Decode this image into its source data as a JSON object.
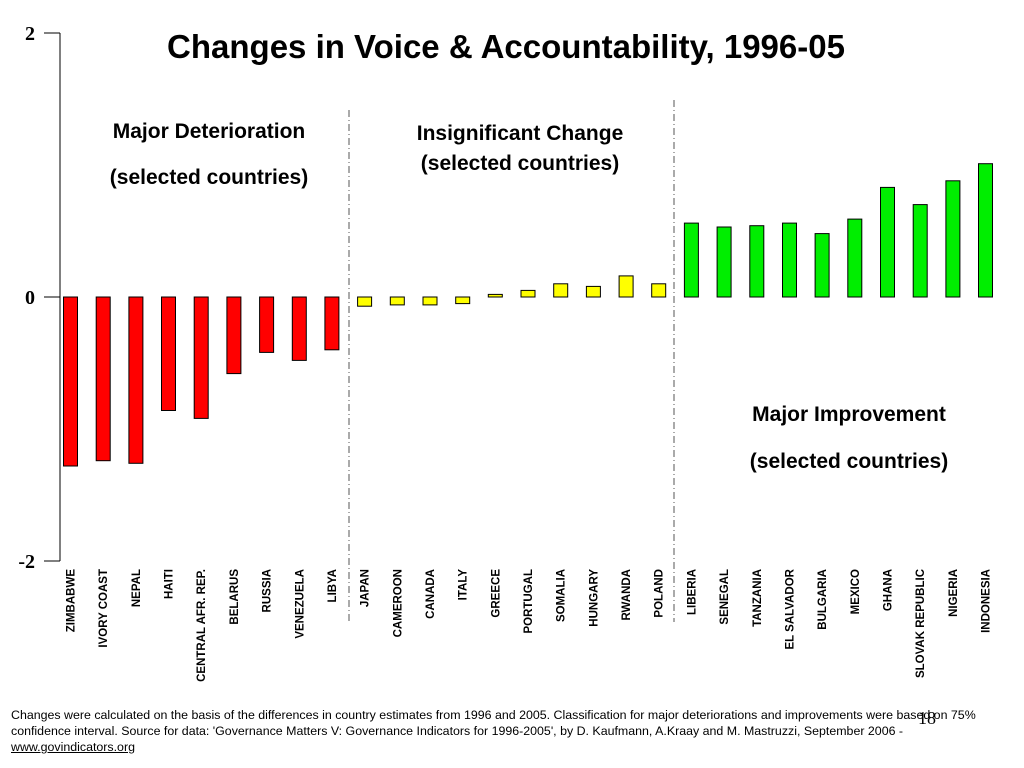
{
  "chart_data": {
    "type": "bar",
    "title": "Changes in Voice & Accountability, 1996-05",
    "ylim": [
      -2,
      2
    ],
    "yticks": [
      "2",
      "0",
      "-2"
    ],
    "grid": false,
    "categories": [
      "ZIMBABWE",
      "IVORY COAST",
      "NEPAL",
      "HAITI",
      "CENTRAL AFR. REP.",
      "BELARUS",
      "RUSSIA",
      "VENEZUELA",
      "LIBYA",
      "JAPAN",
      "CAMEROON",
      "CANADA",
      "ITALY",
      "GREECE",
      "PORTUGAL",
      "SOMALIA",
      "HUNGARY",
      "RWANDA",
      "POLAND",
      "LIBERIA",
      "SENEGAL",
      "TANZANIA",
      "EL SALVADOR",
      "BULGARIA",
      "MEXICO",
      "GHANA",
      "SLOVAK REPUBLIC",
      "NIGERIA",
      "INDONESIA"
    ],
    "values": [
      -1.28,
      -1.24,
      -1.26,
      -0.86,
      -0.92,
      -0.58,
      -0.42,
      -0.48,
      -0.4,
      -0.07,
      -0.06,
      -0.06,
      -0.05,
      0.02,
      0.05,
      0.1,
      0.08,
      0.16,
      0.1,
      0.56,
      0.53,
      0.54,
      0.56,
      0.48,
      0.59,
      0.83,
      0.7,
      0.88,
      1.01
    ],
    "groups": [
      {
        "label_line1": "Major Deterioration",
        "label_line2": "(selected countries)",
        "color": "#ff0000",
        "start": 0,
        "end": 8
      },
      {
        "label_line1": "Insignificant Change",
        "label_line2": "(selected countries)",
        "color": "#ffff00",
        "start": 9,
        "end": 18
      },
      {
        "label_line1": "Major Improvement",
        "label_line2": "(selected countries)",
        "color": "#00ee00",
        "start": 19,
        "end": 28
      }
    ]
  },
  "page_number": "18",
  "footnote": {
    "text": "Changes were calculated on the basis of the differences in country estimates from 1996 and 2005. Classification for major deteriorations and improvements were based on 75% confidence interval. Source for data: 'Governance Matters V: Governance Indicators for 1996-2005', by D. Kaufmann, A.Kraay and M. Mastruzzi, September 2006 - ",
    "link_text": "www.govindicators.org"
  }
}
